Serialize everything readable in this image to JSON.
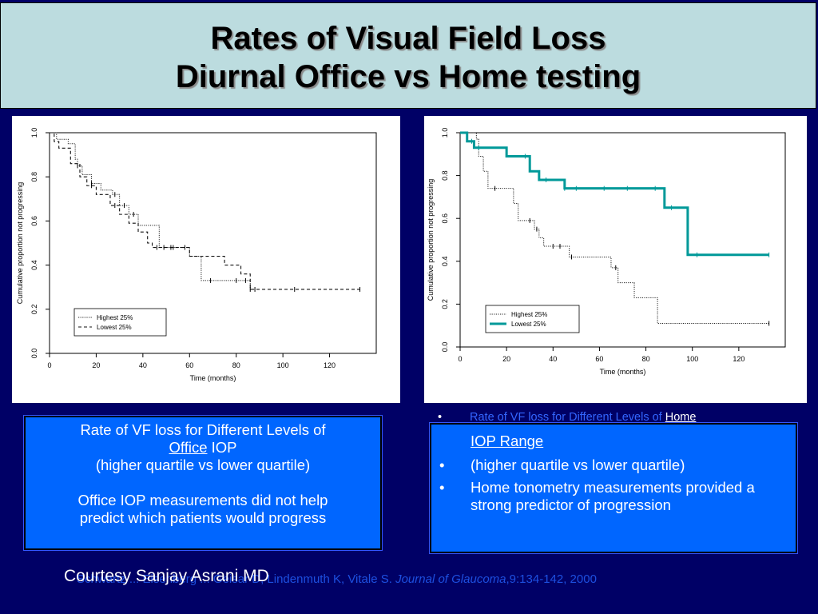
{
  "slide": {
    "title_line1": "Rates of Visual Field Loss",
    "title_line2": "Diurnal Office vs Home testing",
    "colors": {
      "background": "#000066",
      "title_bg": "#bcdcdf",
      "box_bg": "#0066ff",
      "home_curve": "#009999"
    }
  },
  "left_box": {
    "line1": "Rate of VF loss for Different Levels of",
    "line2_underlined": "Office",
    "line2_rest": " IOP",
    "line3": "(higher quartile vs lower quartile)",
    "line4": "Office IOP measurements did not help",
    "line5": "predict which patients would progress"
  },
  "right_box": {
    "header_bullet_prefix": "Rate of VF loss for Different Levels of ",
    "header_bullet_link": "Home",
    "header_continuation": "IOP Range",
    "bullet_char": "•",
    "bullets": [
      "(higher quartile vs lower quartile)",
      "Home tonometry measurements provided a strong predictor of progression"
    ]
  },
  "citation": {
    "prefix": "Schwartz ... Eisenberg ... Geisar D, Lindenmuth K, Vitale S.",
    "journal": "Journal of Glaucoma",
    "suffix": ",9:134-142, 2000"
  },
  "courtesy": "Courtesy Sanjay Asrani MD",
  "chart_data": [
    {
      "type": "line",
      "title": "",
      "xlabel": "Time (months)",
      "ylabel": "Cumulative proportion not progressing",
      "xlim": [
        0,
        140
      ],
      "ylim": [
        0,
        1.0
      ],
      "x_ticks": [
        "0",
        "20",
        "40",
        "60",
        "80",
        "100",
        "120"
      ],
      "x_tick_values": [
        0,
        20,
        40,
        60,
        80,
        100,
        120
      ],
      "y_ticks": [
        "0.0",
        "0.2",
        "0.4",
        "0.6",
        "0.8",
        "1.0"
      ],
      "y_tick_values": [
        0,
        0.2,
        0.4,
        0.6,
        0.8,
        1.0
      ],
      "legend_position": "bottom-left",
      "series": [
        {
          "name": "Highest 25%",
          "style": "dotted",
          "steps": [
            [
              0,
              1.0
            ],
            [
              3,
              0.97
            ],
            [
              8,
              0.95
            ],
            [
              11,
              0.88
            ],
            [
              12,
              0.85
            ],
            [
              14,
              0.81
            ],
            [
              18,
              0.77
            ],
            [
              22,
              0.74
            ],
            [
              27,
              0.72
            ],
            [
              30,
              0.67
            ],
            [
              34,
              0.63
            ],
            [
              38,
              0.58
            ],
            [
              47,
              0.48
            ],
            [
              60,
              0.44
            ],
            [
              65,
              0.33
            ],
            [
              80,
              0.33
            ],
            [
              86,
              0.29
            ],
            [
              88,
              0.29
            ]
          ],
          "censored": [
            12,
            18,
            28,
            32,
            36,
            49,
            53,
            58,
            69,
            80,
            84,
            86
          ]
        },
        {
          "name": "Lowest 25%",
          "style": "dashed",
          "steps": [
            [
              0,
              1.0
            ],
            [
              2,
              0.96
            ],
            [
              4,
              0.93
            ],
            [
              9,
              0.86
            ],
            [
              13,
              0.8
            ],
            [
              16,
              0.76
            ],
            [
              20,
              0.72
            ],
            [
              26,
              0.67
            ],
            [
              30,
              0.63
            ],
            [
              34,
              0.59
            ],
            [
              38,
              0.55
            ],
            [
              42,
              0.5
            ],
            [
              44,
              0.48
            ],
            [
              60,
              0.44
            ],
            [
              75,
              0.4
            ],
            [
              82,
              0.36
            ],
            [
              86,
              0.29
            ],
            [
              133,
              0.29
            ]
          ],
          "censored": [
            18,
            28,
            46,
            52,
            88,
            105,
            133
          ]
        }
      ]
    },
    {
      "type": "line",
      "title": "",
      "xlabel": "Time (months)",
      "ylabel": "Cumulative proportion not progressing",
      "xlim": [
        0,
        140
      ],
      "ylim": [
        0,
        1.0
      ],
      "x_ticks": [
        "0",
        "20",
        "40",
        "60",
        "80",
        "100",
        "120"
      ],
      "x_tick_values": [
        0,
        20,
        40,
        60,
        80,
        100,
        120
      ],
      "y_ticks": [
        "0.0",
        "0.2",
        "0.4",
        "0.6",
        "0.8",
        "1.0"
      ],
      "y_tick_values": [
        0,
        0.2,
        0.4,
        0.6,
        0.8,
        1.0
      ],
      "legend_position": "bottom-left",
      "series": [
        {
          "name": "Highest 25%",
          "style": "dotted",
          "steps": [
            [
              0,
              1.0
            ],
            [
              7,
              0.97
            ],
            [
              8,
              0.89
            ],
            [
              10,
              0.82
            ],
            [
              12,
              0.74
            ],
            [
              22,
              0.74
            ],
            [
              23,
              0.67
            ],
            [
              25,
              0.59
            ],
            [
              32,
              0.55
            ],
            [
              34,
              0.51
            ],
            [
              36,
              0.47
            ],
            [
              45,
              0.47
            ],
            [
              47,
              0.42
            ],
            [
              64,
              0.42
            ],
            [
              65,
              0.37
            ],
            [
              68,
              0.3
            ],
            [
              75,
              0.23
            ],
            [
              85,
              0.11
            ],
            [
              133,
              0.11
            ]
          ],
          "censored": [
            15,
            30,
            33,
            40,
            43,
            48,
            67,
            133
          ]
        },
        {
          "name": "Lowest 25%",
          "style": "solid-thick",
          "steps": [
            [
              0,
              1.0
            ],
            [
              3,
              0.96
            ],
            [
              6,
              0.93
            ],
            [
              19,
              0.93
            ],
            [
              20,
              0.89
            ],
            [
              29,
              0.89
            ],
            [
              30,
              0.82
            ],
            [
              34,
              0.78
            ],
            [
              45,
              0.74
            ],
            [
              86,
              0.74
            ],
            [
              88,
              0.65
            ],
            [
              97,
              0.65
            ],
            [
              98,
              0.43
            ],
            [
              133,
              0.43
            ]
          ],
          "censored": [
            5,
            8,
            28,
            37,
            45,
            50,
            62,
            72,
            84,
            91,
            102,
            133
          ]
        }
      ]
    }
  ]
}
